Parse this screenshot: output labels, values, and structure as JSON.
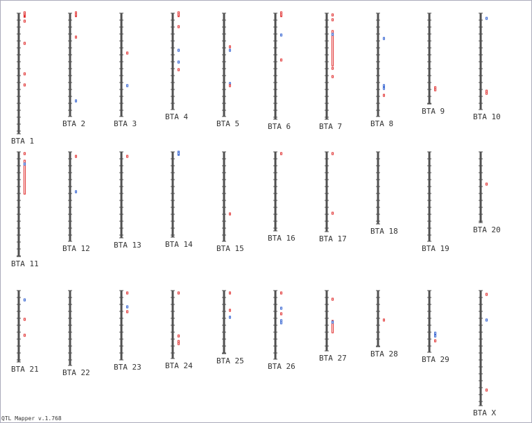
{
  "chromosomes": [
    "BTA 1",
    "BTA 2",
    "BTA 3",
    "BTA 4",
    "BTA 5",
    "BTA 6",
    "BTA 7",
    "BTA 8",
    "BTA 9",
    "BTA 10",
    "BTA 11",
    "BTA 12",
    "BTA 13",
    "BTA 14",
    "BTA 15",
    "BTA 16",
    "BTA 17",
    "BTA 18",
    "BTA 19",
    "BTA 20",
    "BTA 21",
    "BTA 22",
    "BTA 23",
    "BTA 24",
    "BTA 25",
    "BTA 26",
    "BTA 27",
    "BTA 28",
    "BTA 29",
    "BTA X"
  ],
  "footer": "QTL Mapper v.1.768"
}
